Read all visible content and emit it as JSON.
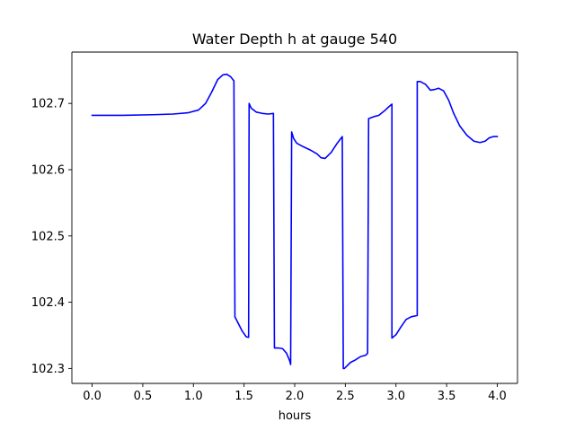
{
  "chart_data": {
    "type": "line",
    "title": "Water Depth h at gauge 540",
    "xlabel": "hours",
    "ylabel": "",
    "xlim": [
      -0.2,
      4.2
    ],
    "ylim": [
      102.2775,
      102.7775
    ],
    "xticks": [
      0.0,
      0.5,
      1.0,
      1.5,
      2.0,
      2.5,
      3.0,
      3.5,
      4.0
    ],
    "xtick_labels": [
      "0.0",
      "0.5",
      "1.0",
      "1.5",
      "2.0",
      "2.5",
      "3.0",
      "3.5",
      "4.0"
    ],
    "yticks": [
      102.3,
      102.4,
      102.5,
      102.6,
      102.7
    ],
    "ytick_labels": [
      "102.3",
      "102.4",
      "102.5",
      "102.6",
      "102.7"
    ],
    "grid": false,
    "colors": {
      "line": "#0000ff",
      "axes": "#000000",
      "background": "#ffffff"
    },
    "series": [
      {
        "x": [
          0.0,
          0.3,
          0.6,
          0.8,
          0.95,
          1.05,
          1.12,
          1.18,
          1.24,
          1.29,
          1.33,
          1.37,
          1.4,
          1.41,
          1.44,
          1.48,
          1.52,
          1.545,
          1.55,
          1.57,
          1.62,
          1.68,
          1.74,
          1.79,
          1.8,
          1.84,
          1.88,
          1.92,
          1.95,
          1.96,
          1.97,
          1.99,
          2.02,
          2.08,
          2.15,
          2.22,
          2.26,
          2.3,
          2.36,
          2.42,
          2.47,
          2.48,
          2.49,
          2.51,
          2.55,
          2.6,
          2.65,
          2.7,
          2.72,
          2.73,
          2.78,
          2.83,
          2.88,
          2.93,
          2.96,
          2.96,
          3.0,
          3.05,
          3.1,
          3.15,
          3.21,
          3.21,
          3.24,
          3.29,
          3.34,
          3.38,
          3.42,
          3.47,
          3.52,
          3.57,
          3.63,
          3.7,
          3.77,
          3.83,
          3.88,
          3.92,
          3.96,
          4.0
        ],
        "y": [
          102.682,
          102.682,
          102.683,
          102.684,
          102.686,
          102.69,
          102.7,
          102.717,
          102.736,
          102.743,
          102.744,
          102.74,
          102.734,
          102.378,
          102.369,
          102.357,
          102.348,
          102.347,
          102.7,
          102.693,
          102.687,
          102.685,
          102.684,
          102.685,
          102.331,
          102.331,
          102.33,
          102.323,
          102.312,
          102.306,
          102.657,
          102.647,
          102.64,
          102.635,
          102.63,
          102.624,
          102.618,
          102.617,
          102.626,
          102.64,
          102.65,
          102.3,
          102.3,
          102.303,
          102.309,
          102.313,
          102.318,
          102.32,
          102.323,
          102.677,
          102.68,
          102.682,
          102.688,
          102.695,
          102.699,
          102.346,
          102.351,
          102.363,
          102.374,
          102.378,
          102.38,
          102.733,
          102.733,
          102.729,
          102.72,
          102.721,
          102.723,
          102.719,
          102.705,
          102.685,
          102.666,
          102.652,
          102.643,
          102.641,
          102.643,
          102.648,
          102.65,
          102.65
        ]
      }
    ]
  }
}
